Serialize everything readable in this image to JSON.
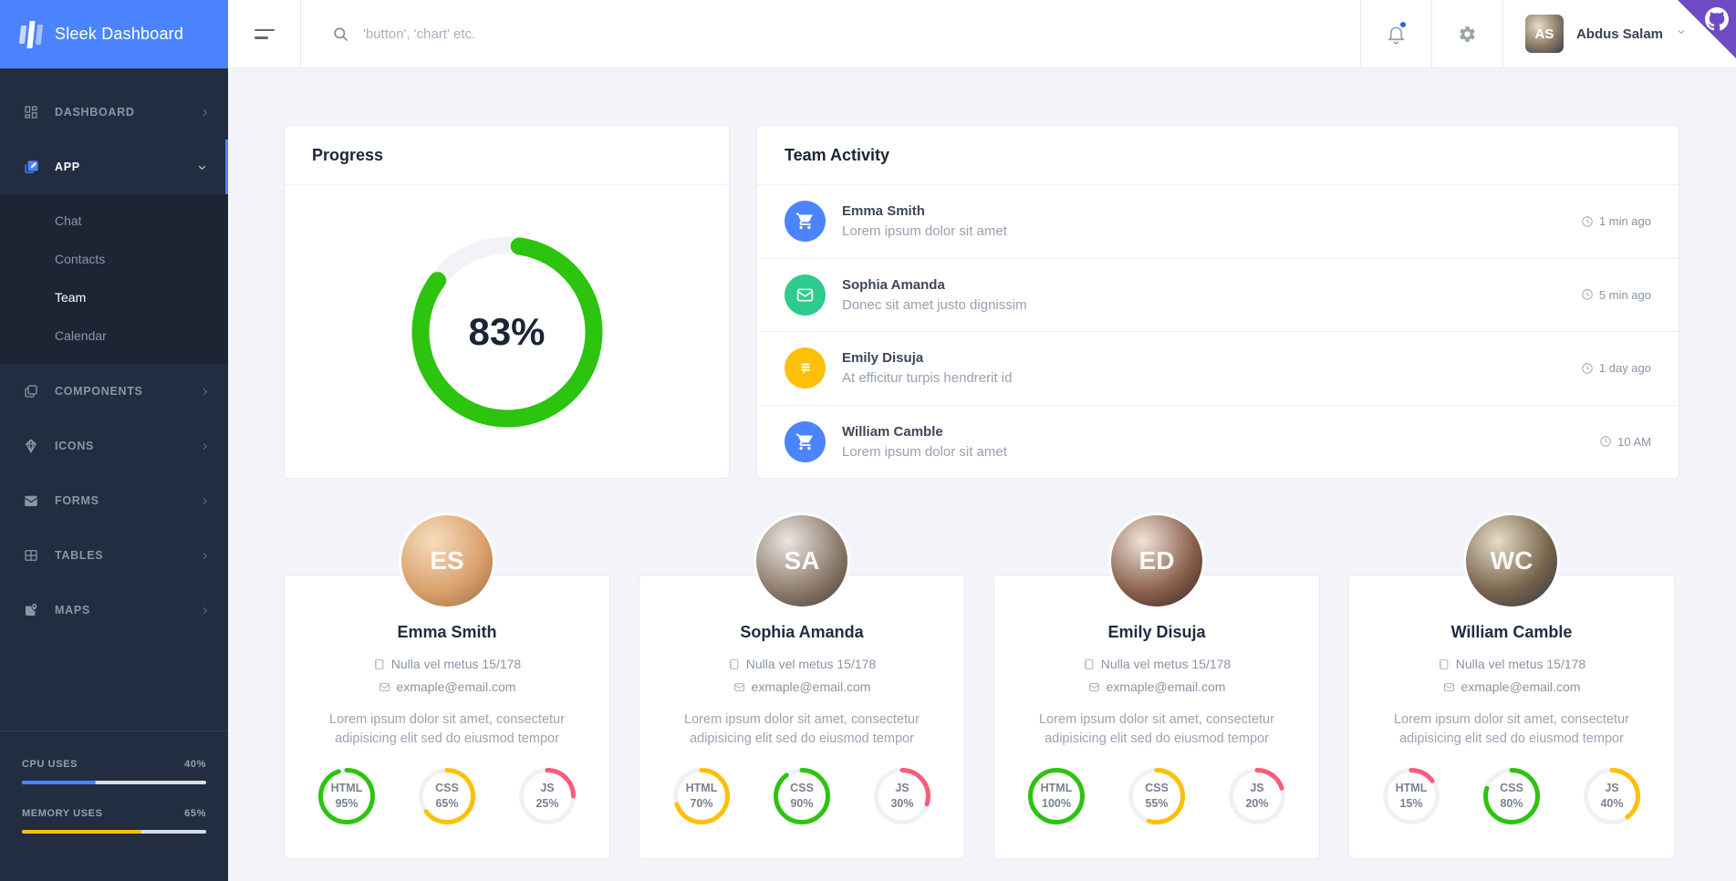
{
  "brand": {
    "title": "Sleek Dashboard"
  },
  "header": {
    "search_placeholder": "'button', 'chart' etc.",
    "user_name": "Abdus Salam"
  },
  "sidebar": {
    "menu": [
      {
        "label": "DASHBOARD"
      },
      {
        "label": "APP"
      },
      {
        "label": "COMPONENTS"
      },
      {
        "label": "ICONS"
      },
      {
        "label": "FORMS"
      },
      {
        "label": "TABLES"
      },
      {
        "label": "MAPS"
      }
    ],
    "app_submenu": [
      "Chat",
      "Contacts",
      "Team",
      "Calendar"
    ],
    "system": {
      "cpu": {
        "label": "CPU USES",
        "value": "40%",
        "pct": 40,
        "color": "#4c84ff"
      },
      "memory": {
        "label": "MEMORY USES",
        "value": "65%",
        "pct": 65,
        "color": "#fdc006"
      }
    }
  },
  "progress_card": {
    "title": "Progress",
    "value_label": "83%",
    "pct": 83,
    "color": "#2cc40e"
  },
  "team_activity": {
    "title": "Team Activity",
    "items": [
      {
        "name": "Emma Smith",
        "text": "Lorem ipsum dolor sit amet",
        "time": "1 min ago",
        "icon": "cart",
        "color": "#4c84ff"
      },
      {
        "name": "Sophia Amanda",
        "text": "Donec sit amet justo dignissim",
        "time": "5 min ago",
        "icon": "envelope",
        "color": "#2dcc8e"
      },
      {
        "name": "Emily Disuja",
        "text": "At efficitur turpis hendrerit id",
        "time": "1 day ago",
        "icon": "notes",
        "color": "#fec107"
      },
      {
        "name": "William Camble",
        "text": "Lorem ipsum dolor sit amet",
        "time": "10 AM",
        "icon": "cart",
        "color": "#4c84ff"
      }
    ]
  },
  "members": [
    {
      "name": "Emma Smith",
      "address": "Nulla vel metus 15/178",
      "email": "exmaple@email.com",
      "about": "Lorem ipsum dolor sit amet, consectetur adipisicing elit sed do eiusmod tempor",
      "skills": [
        {
          "label": "HTML",
          "value": "95%",
          "pct": 95,
          "color": "#2cc40e"
        },
        {
          "label": "CSS",
          "value": "65%",
          "pct": 65,
          "color": "#fdc006"
        },
        {
          "label": "JS",
          "value": "25%",
          "pct": 25,
          "color": "#fa5a7b"
        }
      ]
    },
    {
      "name": "Sophia Amanda",
      "address": "Nulla vel metus 15/178",
      "email": "exmaple@email.com",
      "about": "Lorem ipsum dolor sit amet, consectetur adipisicing elit sed do eiusmod tempor",
      "skills": [
        {
          "label": "HTML",
          "value": "70%",
          "pct": 70,
          "color": "#fdc006"
        },
        {
          "label": "CSS",
          "value": "90%",
          "pct": 90,
          "color": "#2cc40e"
        },
        {
          "label": "JS",
          "value": "30%",
          "pct": 30,
          "color": "#fa5a7b"
        }
      ]
    },
    {
      "name": "Emily Disuja",
      "address": "Nulla vel metus 15/178",
      "email": "exmaple@email.com",
      "about": "Lorem ipsum dolor sit amet, consectetur adipisicing elit sed do eiusmod tempor",
      "skills": [
        {
          "label": "HTML",
          "value": "100%",
          "pct": 100,
          "color": "#2cc40e"
        },
        {
          "label": "CSS",
          "value": "55%",
          "pct": 55,
          "color": "#fdc006"
        },
        {
          "label": "JS",
          "value": "20%",
          "pct": 20,
          "color": "#fa5a7b"
        }
      ]
    },
    {
      "name": "William Camble",
      "address": "Nulla vel metus 15/178",
      "email": "exmaple@email.com",
      "about": "Lorem ipsum dolor sit amet, consectetur adipisicing elit sed do eiusmod tempor",
      "skills": [
        {
          "label": "HTML",
          "value": "15%",
          "pct": 15,
          "color": "#fa5a7b"
        },
        {
          "label": "CSS",
          "value": "80%",
          "pct": 80,
          "color": "#2cc40e"
        },
        {
          "label": "JS",
          "value": "40%",
          "pct": 40,
          "color": "#fdc006"
        }
      ]
    }
  ]
}
